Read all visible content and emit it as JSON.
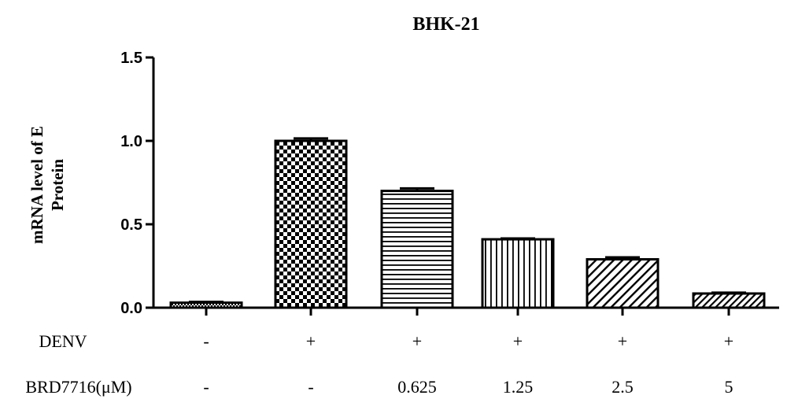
{
  "chart_data": {
    "type": "bar",
    "title": "BHK-21",
    "ylabel_lines": [
      "mRNA level of E",
      "Protein"
    ],
    "ylim": [
      0,
      1.5
    ],
    "yticks": [
      "0.0",
      "0.5",
      "1.0",
      "1.5"
    ],
    "ytick_values": [
      0,
      0.5,
      1.0,
      1.5
    ],
    "values": [
      0.03,
      1.0,
      0.7,
      0.41,
      0.29,
      0.085
    ],
    "errors": [
      0.005,
      0.015,
      0.015,
      0.005,
      0.012,
      0.005
    ],
    "patterns": [
      "pattern-dense",
      "pattern-checker",
      "pattern-hlines",
      "pattern-vlines",
      "pattern-diag",
      "pattern-diag-dense"
    ],
    "condition_rows": [
      {
        "label": "DENV",
        "values": [
          "-",
          "+",
          "+",
          "+",
          "+",
          "+"
        ]
      },
      {
        "label": "BRD7716(μM)",
        "values": [
          "-",
          "-",
          "0.625",
          "1.25",
          "2.5",
          "5"
        ]
      }
    ],
    "grid": false,
    "legend": "none"
  }
}
